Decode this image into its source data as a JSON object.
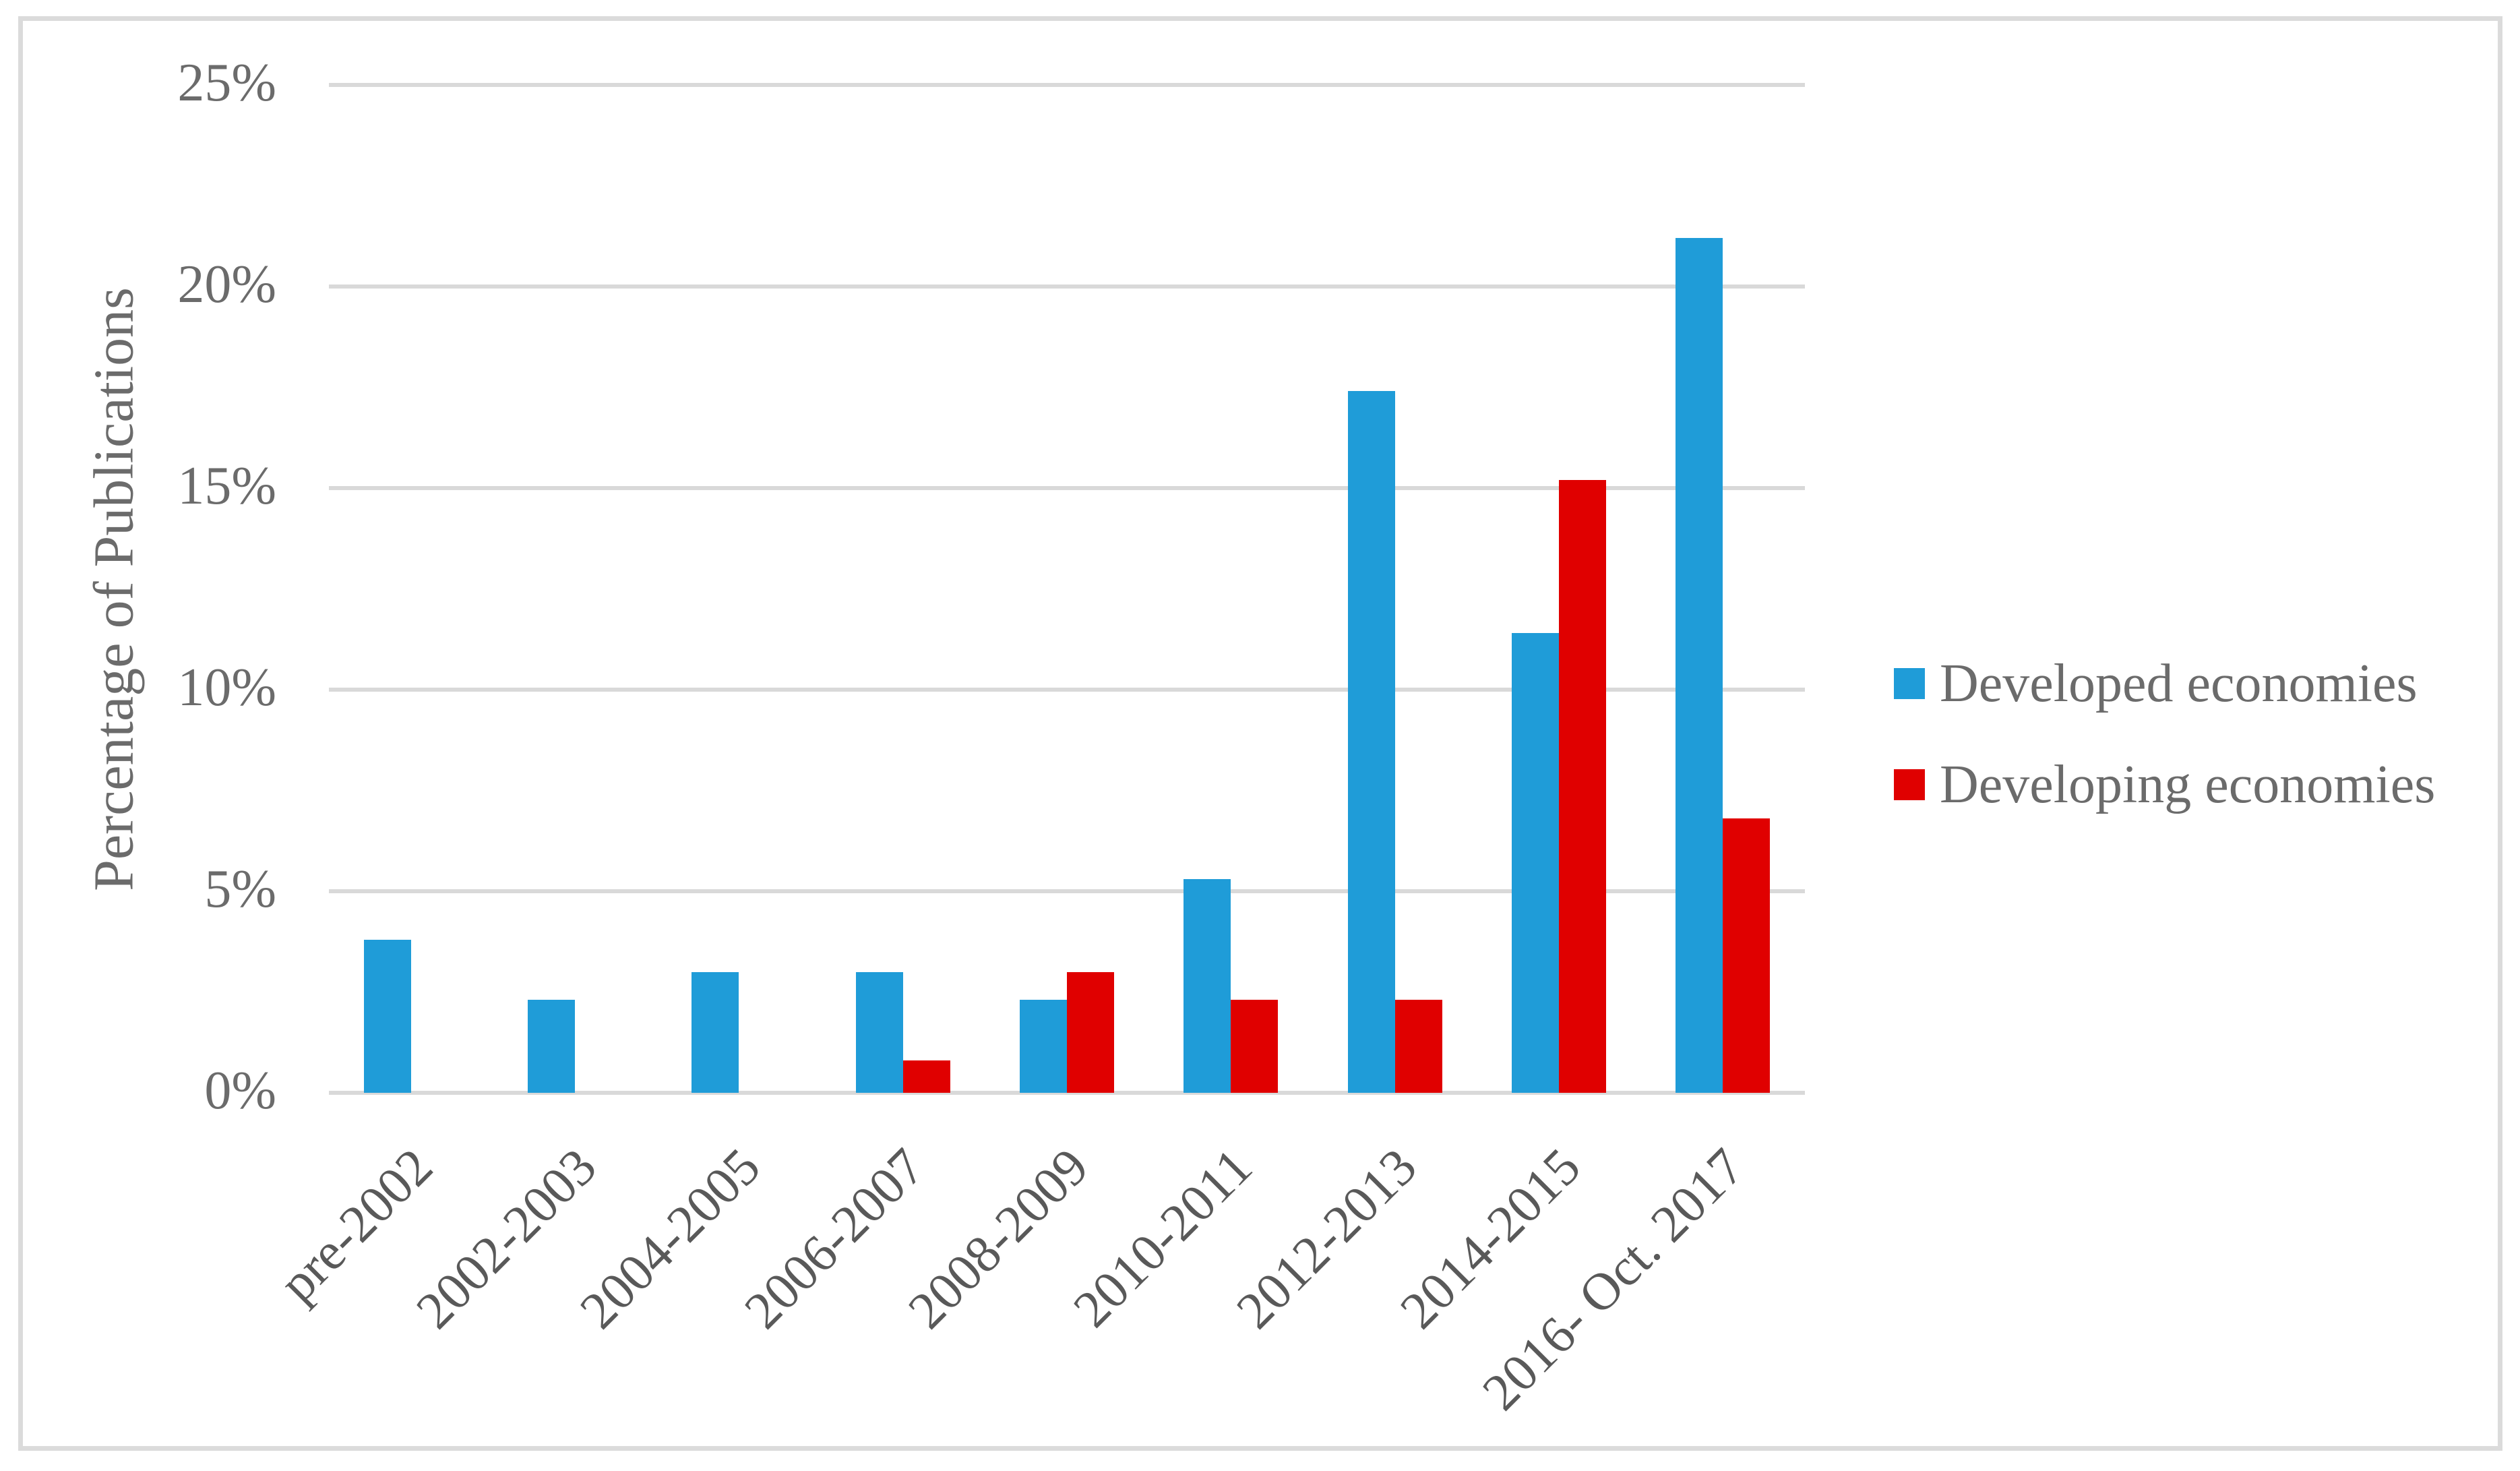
{
  "chart_data": {
    "type": "bar",
    "title": "",
    "ylabel": "Percentage of Publications",
    "categories": [
      "pre-2002",
      "2002-2003",
      "2004-2005",
      "2006-2007",
      "2008-2009",
      "2010-2011",
      "2012-2013",
      "2014-2015",
      "2016- Oct. 2017"
    ],
    "series": [
      {
        "name": "Developed economies",
        "color": "#1F9CD8",
        "values": [
          3.8,
          2.3,
          3.0,
          3.0,
          2.3,
          5.3,
          17.4,
          11.4,
          21.2
        ]
      },
      {
        "name": "Developing economies",
        "color": "#E00000",
        "values": [
          0,
          0,
          0,
          0.8,
          3.0,
          2.3,
          2.3,
          15.2,
          6.8
        ]
      }
    ],
    "ylim": [
      0,
      25
    ],
    "yticks": [
      "0%",
      "5%",
      "10%",
      "15%",
      "20%",
      "25%"
    ],
    "grid": true,
    "legend_position": "right"
  }
}
